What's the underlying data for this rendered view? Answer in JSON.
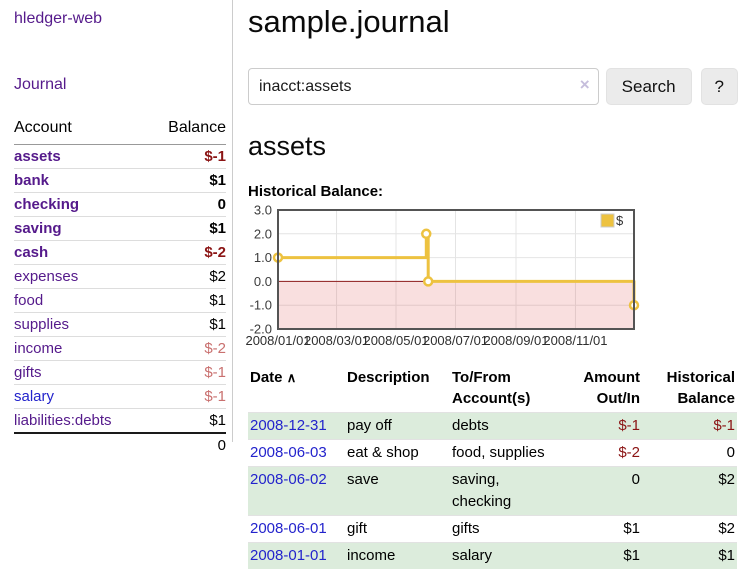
{
  "sidebar": {
    "app_title": "hledger-web",
    "journal_link": "Journal",
    "table": {
      "account_header": "Account",
      "balance_header": "Balance"
    },
    "accounts": [
      {
        "name": "assets",
        "balance": "$-1"
      },
      {
        "name": "bank",
        "balance": "$1"
      },
      {
        "name": "checking",
        "balance": "0"
      },
      {
        "name": "saving",
        "balance": "$1"
      },
      {
        "name": "cash",
        "balance": "$-2"
      },
      {
        "name": "expenses",
        "balance": "$2"
      },
      {
        "name": "food",
        "balance": "$1"
      },
      {
        "name": "supplies",
        "balance": "$1"
      },
      {
        "name": "income",
        "balance": "$-2"
      },
      {
        "name": "gifts",
        "balance": "$-1"
      },
      {
        "name": "salary",
        "balance": "$-1"
      },
      {
        "name": "liabilities:debts",
        "balance": "$1"
      }
    ],
    "total": "0"
  },
  "main": {
    "title": "sample.journal",
    "search": {
      "value": "inacct:assets",
      "clear_icon": "×",
      "search_button": "Search",
      "help_button": "?"
    },
    "account_heading": "assets",
    "chart_label": "Historical Balance:"
  },
  "chart_data": {
    "type": "line",
    "title": "Historical Balance:",
    "step": true,
    "series": [
      {
        "name": "$",
        "color": "#edc240",
        "points": [
          [
            "2008-01-01",
            1
          ],
          [
            "2008-06-01",
            2
          ],
          [
            "2008-06-03",
            0
          ],
          [
            "2008-12-31",
            -1
          ]
        ]
      }
    ],
    "x_range": [
      "2008-01-01",
      "2008-12-31"
    ],
    "x_ticks": [
      "2008/01/01",
      "2008/03/01",
      "2008/05/01",
      "2008/07/01",
      "2008/09/01",
      "2008/11/01"
    ],
    "y_ticks": [
      3.0,
      2.0,
      1.0,
      0.0,
      -1.0,
      -2.0
    ],
    "ylim": [
      -2,
      3
    ],
    "grid": true,
    "legend_position": "top-right",
    "zero_line_color": "#8b1a1a",
    "negative_region_color": "#e05050"
  },
  "transactions": {
    "headers": {
      "date": "Date",
      "sort_icon": "∧",
      "description": "Description",
      "accounts": "To/From Account(s)",
      "amount": "Amount Out/In",
      "balance": "Historical Balance"
    },
    "rows": [
      {
        "date": "2008-12-31",
        "description": "pay off",
        "accounts": "debts",
        "amount": "$-1",
        "balance": "$-1"
      },
      {
        "date": "2008-06-03",
        "description": "eat & shop",
        "accounts": "food, supplies",
        "amount": "$-2",
        "balance": "0"
      },
      {
        "date": "2008-06-02",
        "description": "save",
        "accounts": "saving, checking",
        "amount": "0",
        "balance": "$2"
      },
      {
        "date": "2008-06-01",
        "description": "gift",
        "accounts": "gifts",
        "amount": "$1",
        "balance": "$2"
      },
      {
        "date": "2008-01-01",
        "description": "income",
        "accounts": "salary",
        "amount": "$1",
        "balance": "$1"
      }
    ]
  }
}
